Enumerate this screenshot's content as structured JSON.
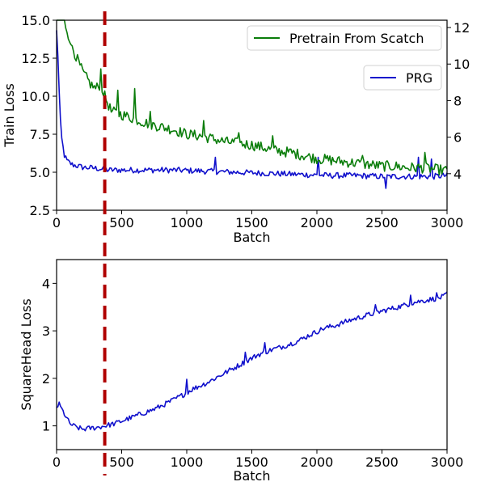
{
  "chart_data": [
    {
      "type": "line",
      "xlabel": "Batch",
      "ylabel": "Train Loss",
      "xlim": [
        0,
        3000
      ],
      "xticks": [
        "0",
        "500",
        "1000",
        "1500",
        "2000",
        "2500",
        "3000"
      ],
      "xtick_values": [
        0,
        500,
        1000,
        1500,
        2000,
        2500,
        3000
      ],
      "ylim_left": [
        2.5,
        15.0
      ],
      "yticks_left": [
        "2.5",
        "5.0",
        "7.5",
        "10.0",
        "12.5",
        "15.0"
      ],
      "ytick_values_left": [
        2.5,
        5.0,
        7.5,
        10.0,
        12.5,
        15.0
      ],
      "ylim_right": [
        2,
        12.4
      ],
      "yticks_right": [
        "4",
        "6",
        "8",
        "10",
        "12"
      ],
      "ytick_values_right": [
        4,
        6,
        8,
        10,
        12
      ],
      "vline_x": 370,
      "grid": false,
      "series": [
        {
          "name": "Pretrain From Scatch",
          "axis": "left",
          "color": "#0a7d0a",
          "legend_position": "top-right",
          "anchors": [
            [
              0,
              17.0
            ],
            [
              50,
              15.2
            ],
            [
              100,
              13.8
            ],
            [
              150,
              12.6
            ],
            [
              200,
              11.6
            ],
            [
              260,
              10.8
            ],
            [
              300,
              10.5
            ],
            [
              340,
              10.8
            ],
            [
              370,
              10.0
            ],
            [
              420,
              9.0
            ],
            [
              500,
              8.8
            ],
            [
              600,
              8.5
            ],
            [
              700,
              8.2
            ],
            [
              800,
              8.0
            ],
            [
              900,
              7.8
            ],
            [
              1000,
              7.5
            ],
            [
              1100,
              7.4
            ],
            [
              1200,
              7.2
            ],
            [
              1300,
              7.0
            ],
            [
              1400,
              6.9
            ],
            [
              1500,
              6.8
            ],
            [
              1600,
              6.6
            ],
            [
              1700,
              6.4
            ],
            [
              1800,
              6.3
            ],
            [
              1900,
              6.1
            ],
            [
              2000,
              5.9
            ],
            [
              2100,
              5.8
            ],
            [
              2200,
              5.7
            ],
            [
              2300,
              5.6
            ],
            [
              2400,
              5.5
            ],
            [
              2500,
              5.4
            ],
            [
              2600,
              5.4
            ],
            [
              2700,
              5.3
            ],
            [
              2800,
              5.3
            ],
            [
              2900,
              5.2
            ],
            [
              3000,
              5.1
            ]
          ],
          "spikes": [
            [
              40,
              15.5
            ],
            [
              110,
              13.4
            ],
            [
              340,
              11.8
            ],
            [
              470,
              10.4
            ],
            [
              600,
              10.5
            ],
            [
              720,
              9.0
            ],
            [
              1130,
              8.4
            ],
            [
              1400,
              7.6
            ],
            [
              1660,
              7.4
            ],
            [
              2350,
              6.1
            ],
            [
              2830,
              6.3
            ]
          ],
          "noise": 0.35
        },
        {
          "name": "PRG",
          "axis": "right",
          "color": "#1010cc",
          "legend_position": "right",
          "anchors": [
            [
              0,
              11.8
            ],
            [
              10,
              10.5
            ],
            [
              20,
              8.5
            ],
            [
              30,
              6.8
            ],
            [
              40,
              5.9
            ],
            [
              60,
              5.0
            ],
            [
              80,
              4.7
            ],
            [
              120,
              4.5
            ],
            [
              200,
              4.35
            ],
            [
              300,
              4.3
            ],
            [
              400,
              4.2
            ],
            [
              500,
              4.2
            ],
            [
              700,
              4.2
            ],
            [
              900,
              4.2
            ],
            [
              1100,
              4.15
            ],
            [
              1300,
              4.1
            ],
            [
              1500,
              4.05
            ],
            [
              1700,
              4.0
            ],
            [
              1900,
              3.95
            ],
            [
              2100,
              3.9
            ],
            [
              2300,
              3.9
            ],
            [
              2500,
              3.85
            ],
            [
              2700,
              3.85
            ],
            [
              2900,
              3.85
            ],
            [
              3000,
              3.9
            ]
          ],
          "spikes": [
            [
              1220,
              4.9
            ],
            [
              2010,
              4.9
            ],
            [
              2530,
              3.2
            ],
            [
              2780,
              4.9
            ],
            [
              2880,
              4.8
            ]
          ],
          "noise": 0.16
        }
      ]
    },
    {
      "type": "line",
      "xlabel": "Batch",
      "ylabel": "SquareHead Loss",
      "xlim": [
        0,
        3000
      ],
      "xticks": [
        "0",
        "500",
        "1000",
        "1500",
        "2000",
        "2500",
        "3000"
      ],
      "xtick_values": [
        0,
        500,
        1000,
        1500,
        2000,
        2500,
        3000
      ],
      "ylim": [
        0.5,
        4.5
      ],
      "yticks": [
        "1",
        "2",
        "3",
        "4"
      ],
      "ytick_values": [
        1,
        2,
        3,
        4
      ],
      "vline_x": 370,
      "grid": false,
      "series": [
        {
          "name": "",
          "color": "#1010cc",
          "anchors": [
            [
              0,
              1.4
            ],
            [
              20,
              1.45
            ],
            [
              40,
              1.35
            ],
            [
              70,
              1.2
            ],
            [
              100,
              1.05
            ],
            [
              150,
              0.97
            ],
            [
              200,
              0.93
            ],
            [
              260,
              0.95
            ],
            [
              320,
              0.97
            ],
            [
              370,
              1.0
            ],
            [
              450,
              1.05
            ],
            [
              550,
              1.15
            ],
            [
              650,
              1.25
            ],
            [
              750,
              1.35
            ],
            [
              850,
              1.48
            ],
            [
              950,
              1.62
            ],
            [
              1050,
              1.78
            ],
            [
              1150,
              1.9
            ],
            [
              1250,
              2.05
            ],
            [
              1350,
              2.2
            ],
            [
              1450,
              2.35
            ],
            [
              1550,
              2.5
            ],
            [
              1650,
              2.6
            ],
            [
              1750,
              2.68
            ],
            [
              1850,
              2.78
            ],
            [
              1950,
              2.92
            ],
            [
              2050,
              3.05
            ],
            [
              2150,
              3.12
            ],
            [
              2250,
              3.22
            ],
            [
              2350,
              3.3
            ],
            [
              2450,
              3.38
            ],
            [
              2550,
              3.45
            ],
            [
              2650,
              3.52
            ],
            [
              2750,
              3.6
            ],
            [
              2850,
              3.65
            ],
            [
              2950,
              3.7
            ],
            [
              3000,
              3.75
            ]
          ],
          "spikes": [
            [
              1000,
              1.98
            ],
            [
              1450,
              2.55
            ],
            [
              1600,
              2.75
            ],
            [
              2450,
              3.55
            ],
            [
              2720,
              3.75
            ],
            [
              2920,
              3.8
            ],
            [
              3000,
              3.82
            ]
          ],
          "noise": 0.055
        }
      ]
    }
  ]
}
